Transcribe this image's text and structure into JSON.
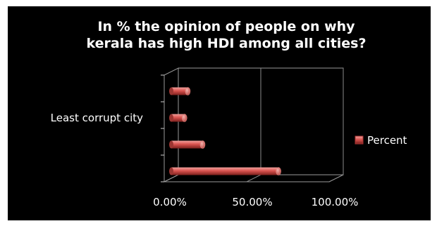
{
  "chart_data": {
    "type": "bar",
    "orientation": "horizontal",
    "title": "In % the opinion of people on why kerala has high HDI among all cities?",
    "title_lines": [
      "In % the opinion of people on why",
      "kerala has high HDI among all cities?"
    ],
    "categories": [
      "",
      "Least corrupt city",
      "",
      ""
    ],
    "series": [
      {
        "name": "Percent",
        "color": "#d9534f",
        "values": [
          0.1,
          0.08,
          0.19,
          0.65
        ]
      }
    ],
    "xlim": [
      0,
      1.0
    ],
    "x_ticks": [
      "0.00%",
      "50.00%",
      "100.00%"
    ],
    "grid": true,
    "legend_position": "right",
    "style_3d": true,
    "colors": {
      "background": "#000000",
      "frame": "#ffffff",
      "bar": "#d9534f",
      "gridline": "#808080",
      "text": "#ffffff"
    }
  }
}
